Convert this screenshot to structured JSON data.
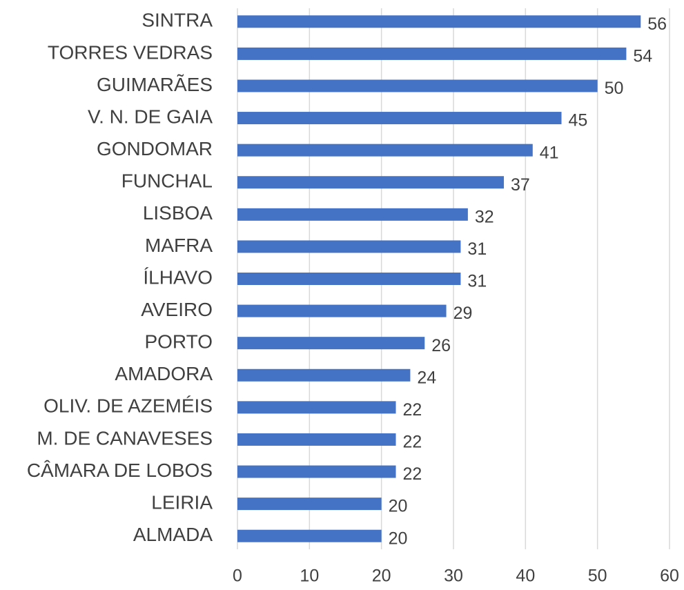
{
  "chart_data": {
    "type": "bar",
    "orientation": "horizontal",
    "categories": [
      "SINTRA",
      "TORRES VEDRAS",
      "GUIMARÃES",
      "V. N. DE GAIA",
      "GONDOMAR",
      "FUNCHAL",
      "LISBOA",
      "MAFRA",
      "ÍLHAVO",
      "AVEIRO",
      "PORTO",
      "AMADORA",
      "OLIV. DE AZEMÉIS",
      "M. DE CANAVESES",
      "CÂMARA DE LOBOS",
      "LEIRIA",
      "ALMADA"
    ],
    "values": [
      56,
      54,
      50,
      45,
      41,
      37,
      32,
      31,
      31,
      29,
      26,
      24,
      22,
      22,
      22,
      20,
      20
    ],
    "color": "#4472c4",
    "xlim": [
      0,
      60
    ],
    "xticks": [
      0,
      10,
      20,
      30,
      40,
      50,
      60
    ],
    "grid": true
  }
}
